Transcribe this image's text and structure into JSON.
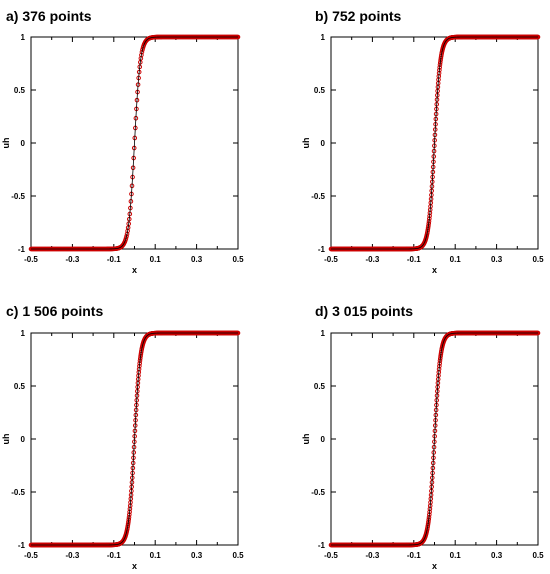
{
  "chart_data": [
    {
      "type": "scatter",
      "title": "a) 376 points",
      "xlabel": "x",
      "ylabel": "uh",
      "xlim": [
        -0.5,
        0.5
      ],
      "ylim": [
        -1,
        1
      ],
      "xticks": [
        "-0.5",
        "-0.3",
        "-0.1",
        "0.1",
        "0.3",
        "0.5"
      ],
      "yticks": [
        "1",
        "0.5",
        "0",
        "-0.5",
        "-1"
      ],
      "grid": false,
      "series": [
        {
          "points": 376,
          "shape": "tanh step",
          "x_start": -0.5,
          "x_end": 0.5,
          "transition_center": 0.0,
          "low": -1,
          "high": 1,
          "marker_color": "#cc0000",
          "line_color": "#000000"
        }
      ]
    },
    {
      "type": "scatter",
      "title": "b) 752 points",
      "xlabel": "x",
      "ylabel": "uh",
      "xlim": [
        -0.5,
        0.5
      ],
      "ylim": [
        -1,
        1
      ],
      "xticks": [
        "-0.5",
        "-0.3",
        "-0.1",
        "0.1",
        "0.3",
        "0.5"
      ],
      "yticks": [
        "1",
        "0.5",
        "0",
        "-0.5",
        "-1"
      ],
      "grid": false,
      "series": [
        {
          "points": 752,
          "shape": "tanh step",
          "x_start": -0.5,
          "x_end": 0.5,
          "transition_center": 0.0,
          "low": -1,
          "high": 1,
          "marker_color": "#cc0000",
          "line_color": "#000000"
        }
      ]
    },
    {
      "type": "scatter",
      "title": "c) 1 506 points",
      "xlabel": "x",
      "ylabel": "uh",
      "xlim": [
        -0.5,
        0.5
      ],
      "ylim": [
        -1,
        1
      ],
      "xticks": [
        "-0.5",
        "-0.3",
        "-0.1",
        "0.1",
        "0.3",
        "0.5"
      ],
      "yticks": [
        "1",
        "0.5",
        "0",
        "-0.5",
        "-1"
      ],
      "grid": false,
      "series": [
        {
          "points": 1506,
          "shape": "tanh step",
          "x_start": -0.5,
          "x_end": 0.5,
          "transition_center": 0.0,
          "low": -1,
          "high": 1,
          "marker_color": "#cc0000",
          "line_color": "#000000"
        }
      ]
    },
    {
      "type": "scatter",
      "title": "d) 3 015 points",
      "xlabel": "x",
      "ylabel": "uh",
      "xlim": [
        -0.5,
        0.5
      ],
      "ylim": [
        -1,
        1
      ],
      "xticks": [
        "-0.5",
        "-0.3",
        "-0.1",
        "0.1",
        "0.3",
        "0.5"
      ],
      "yticks": [
        "1",
        "0.5",
        "0",
        "-0.5",
        "-1"
      ],
      "grid": false,
      "series": [
        {
          "points": 3015,
          "shape": "tanh step",
          "x_start": -0.5,
          "x_end": 0.5,
          "transition_center": 0.0,
          "low": -1,
          "high": 1,
          "marker_color": "#cc0000",
          "line_color": "#000000"
        }
      ]
    }
  ]
}
